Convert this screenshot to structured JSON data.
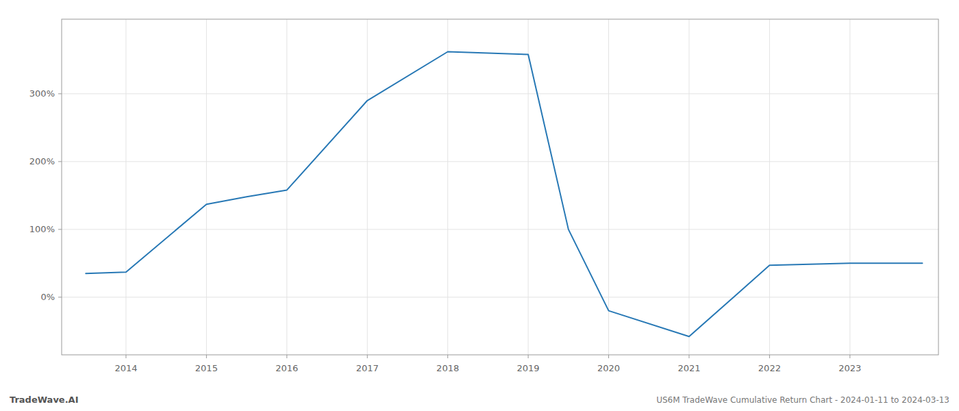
{
  "chart_data": {
    "type": "line",
    "title": "US6M TradeWave Cumulative Return Chart - 2024-01-11 to 2024-03-13",
    "annotations": [
      "TradeWave.AI"
    ],
    "x": [
      2013.5,
      2014.0,
      2015.0,
      2015.5,
      2016.0,
      2017.0,
      2018.0,
      2019.0,
      2019.5,
      2020.0,
      2021.0,
      2021.6,
      2022.0,
      2023.0,
      2023.9
    ],
    "values": [
      35,
      37,
      137,
      148,
      158,
      290,
      362,
      358,
      100,
      -20,
      -58,
      5,
      47,
      50,
      50
    ],
    "color": "#2778b5",
    "xlim": [
      2013.2,
      2024.1
    ],
    "xticks": [
      2014,
      2015,
      2016,
      2017,
      2018,
      2019,
      2020,
      2021,
      2022,
      2023
    ],
    "ylim": [
      -85,
      410
    ],
    "yticks": [
      {
        "value": 0,
        "label": "0%"
      },
      {
        "value": 100,
        "label": "100%"
      },
      {
        "value": 200,
        "label": "200%"
      },
      {
        "value": 300,
        "label": "300%"
      }
    ],
    "grid": true
  }
}
